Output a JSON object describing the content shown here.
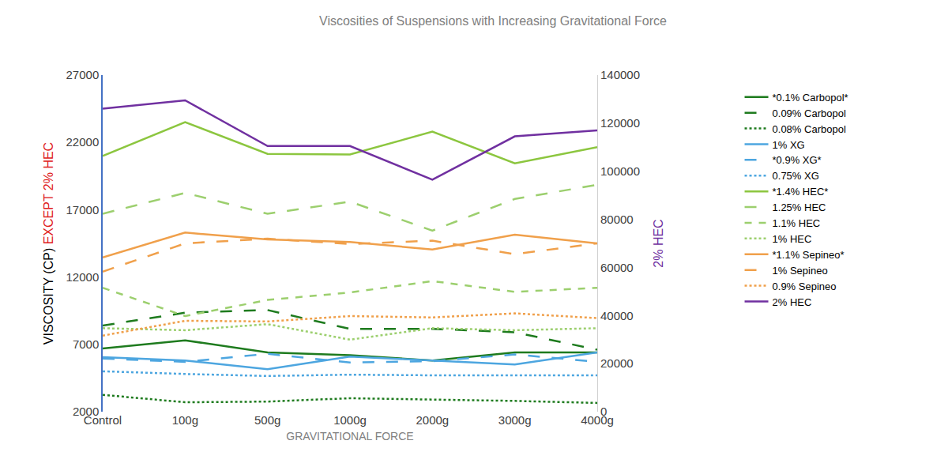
{
  "chart_data": {
    "type": "line",
    "title": "Viscosities of Suspensions with Increasing Gravitational Force",
    "x_label": "GRAVITATIONAL FORCE",
    "y_label": "VISCOSITY (CP)",
    "y_label_note": {
      "text": "EXCEPT 2% HEC",
      "color": "#e02020"
    },
    "y2_label": {
      "text": "2% HEC",
      "color": "#7030a0"
    },
    "categories": [
      "Control",
      "100g",
      "500g",
      "1000g",
      "2000g",
      "3000g",
      "4000g"
    ],
    "ylim": [
      2000,
      27000
    ],
    "yticks": [
      2000,
      7000,
      12000,
      17000,
      22000,
      27000
    ],
    "y2lim": [
      0,
      140000
    ],
    "y2ticks": [
      0,
      20000,
      40000,
      60000,
      80000,
      100000,
      120000,
      140000
    ],
    "grid": false,
    "legend": "right",
    "series": [
      {
        "name": "*0.1% Carbopol*",
        "color": "#1e7b1e",
        "line_style": "solid",
        "values": [
          6700,
          7300,
          6400,
          6200,
          5800,
          6400,
          6400
        ]
      },
      {
        "name": "0.09% Carbopol",
        "color": "#1e7b1e",
        "line_style": "longdash",
        "values": [
          8400,
          9350,
          9550,
          8150,
          8150,
          7900,
          6600
        ]
      },
      {
        "name": "0.08% Carbopol",
        "color": "#1e7b1e",
        "line_style": "dot",
        "values": [
          3250,
          2700,
          2750,
          3000,
          2900,
          2800,
          2650
        ]
      },
      {
        "name": "1% XG",
        "color": "#4da6e0",
        "line_style": "solid",
        "values": [
          6050,
          5800,
          5150,
          6100,
          5800,
          5500,
          6400
        ]
      },
      {
        "name": "*0.9% XG*",
        "color": "#4da6e0",
        "line_style": "longdash",
        "values": [
          5950,
          5700,
          6300,
          5650,
          5750,
          6250,
          5700
        ]
      },
      {
        "name": "0.75% XG",
        "color": "#4da6e0",
        "line_style": "dot",
        "values": [
          5000,
          4800,
          4650,
          4750,
          4700,
          4700,
          4700
        ]
      },
      {
        "name": "*1.4% HEC*",
        "color": "#8cc63f",
        "line_style": "solid",
        "values": [
          21000,
          23500,
          21150,
          21100,
          22800,
          20450,
          21650
        ]
      },
      {
        "name": "1.25% HEC",
        "color": "#9ccf6e",
        "line_style": "longdash",
        "values": [
          16700,
          18250,
          16700,
          17600,
          15450,
          17800,
          18850
        ]
      },
      {
        "name": "1.1% HEC",
        "color": "#9ccf6e",
        "line_style": "dash",
        "values": [
          11200,
          9100,
          10300,
          10850,
          11700,
          10900,
          11200
        ]
      },
      {
        "name": "1% HEC",
        "color": "#9ccf6e",
        "line_style": "dot",
        "values": [
          8200,
          8050,
          8500,
          7350,
          8200,
          8050,
          8200
        ]
      },
      {
        "name": "*1.1% Sepineo*",
        "color": "#f0a04b",
        "line_style": "solid",
        "values": [
          13450,
          15300,
          14800,
          14600,
          14050,
          15150,
          14500
        ]
      },
      {
        "name": "1% Sepineo",
        "color": "#f0a04b",
        "line_style": "longdash",
        "values": [
          12400,
          14500,
          14850,
          14450,
          14700,
          13700,
          14500
        ]
      },
      {
        "name": "0.9% Sepineo",
        "color": "#f0a04b",
        "line_style": "dot",
        "values": [
          7650,
          8750,
          8700,
          9100,
          9000,
          9300,
          8950
        ]
      },
      {
        "name": "2% HEC",
        "color": "#7030a0",
        "line_style": "solid",
        "axis": "y2",
        "values": [
          126000,
          129500,
          110500,
          110500,
          96500,
          114500,
          117000
        ]
      }
    ]
  }
}
